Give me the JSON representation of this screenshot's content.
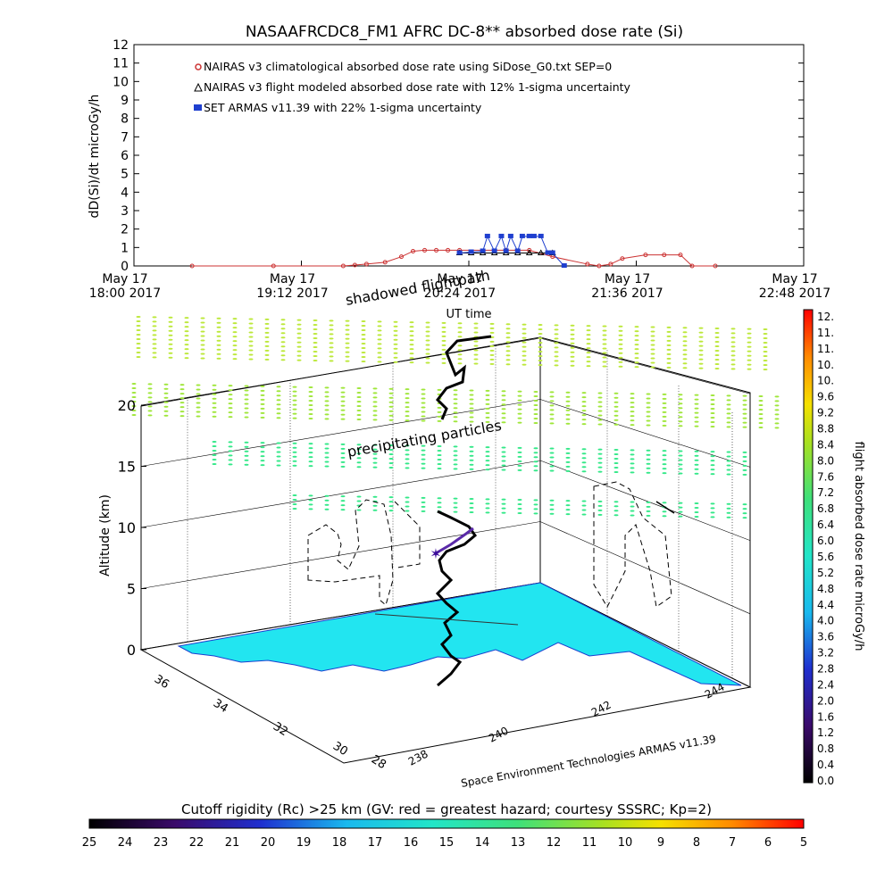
{
  "chart_data": [
    {
      "type": "line",
      "title": "NASAAFRCDC8_FM1 AFRC DC-8** absorbed dose rate (Si)",
      "ylabel": "dD(Si)/dt microGy/h",
      "xlabel": "UT time",
      "ylim": [
        0,
        12
      ],
      "yticks": [
        "0",
        "1",
        "2",
        "3",
        "4",
        "5",
        "6",
        "7",
        "8",
        "9",
        "10",
        "11",
        "12"
      ],
      "xticks": [
        {
          "line1": "May 17",
          "line2": "18:00 2017"
        },
        {
          "line1": "May 17",
          "line2": "19:12 2017"
        },
        {
          "line1": "May 17",
          "line2": "20:24 2017"
        },
        {
          "line1": "May 17",
          "line2": "21:36 2017"
        },
        {
          "line1": "May 17",
          "line2": "22:48 2017"
        }
      ],
      "xlim_minutes": [
        0,
        288
      ],
      "legend": "top-left",
      "series": [
        {
          "name": "NAIRAS v3 climatological absorbed dose rate using SiDose_G0.txt SEP=0",
          "color": "#cc3333",
          "marker": "circle",
          "x": [
            25,
            60,
            90,
            95,
            100,
            108,
            115,
            120,
            125,
            130,
            135,
            140,
            160,
            170,
            180,
            195,
            200,
            205,
            210,
            220,
            228,
            235,
            240,
            250
          ],
          "y": [
            0,
            0,
            0,
            0.05,
            0.1,
            0.2,
            0.5,
            0.8,
            0.85,
            0.85,
            0.85,
            0.85,
            0.85,
            0.85,
            0.5,
            0.1,
            0,
            0.1,
            0.4,
            0.6,
            0.6,
            0.6,
            0,
            0
          ]
        },
        {
          "name": "NAIRAS v3 flight modeled absorbed dose rate with 12% 1-sigma uncertainty",
          "color": "#000000",
          "marker": "triangle",
          "x": [
            140,
            145,
            150,
            155,
            160,
            165,
            170,
            175,
            180
          ],
          "y": [
            0.7,
            0.7,
            0.7,
            0.7,
            0.7,
            0.7,
            0.7,
            0.7,
            0.7
          ]
        },
        {
          "name": "SET ARMAS v11.39 with 22% 1-sigma uncertainty",
          "color": "#1f3fcf",
          "marker": "square",
          "x": [
            140,
            145,
            150,
            152,
            155,
            158,
            160,
            162,
            165,
            167,
            170,
            172,
            175,
            178,
            180,
            185
          ],
          "y": [
            0.7,
            0.75,
            0.8,
            1.6,
            0.8,
            1.6,
            0.8,
            1.6,
            0.8,
            1.6,
            1.6,
            1.6,
            1.6,
            0.7,
            0.7,
            0
          ]
        }
      ]
    },
    {
      "type": "scatter",
      "subtype": "3d-flight-track",
      "zlabel": "Altitude (km)",
      "zticks": [
        "0",
        "5",
        "10",
        "15",
        "20"
      ],
      "lat_ticks": [
        "36",
        "34",
        "32",
        "30",
        "28"
      ],
      "lon_ticks": [
        "238",
        "240",
        "242",
        "244"
      ],
      "annotations": [
        "shadowed flightpath",
        "precipitating particles"
      ],
      "caption": "Space Environment Technologies ARMAS v11.39",
      "ocean_color": "#22e5f0",
      "land_color": "#ffffff",
      "particle_color": "#33e888",
      "track_color": "#000000"
    },
    {
      "type": "colorbar",
      "orientation": "vertical",
      "label": "flight absorbed dose rate microGy/h",
      "ticks": [
        "12.",
        "11.",
        "11.",
        "10.",
        "10.",
        "9.6",
        "9.2",
        "8.8",
        "8.4",
        "8.0",
        "7.6",
        "7.2",
        "6.8",
        "6.4",
        "6.0",
        "5.6",
        "5.2",
        "4.8",
        "4.4",
        "4.0",
        "3.6",
        "3.2",
        "2.8",
        "2.4",
        "2.0",
        "1.6",
        "1.2",
        "0.8",
        "0.4",
        "0.0"
      ]
    },
    {
      "type": "colorbar",
      "orientation": "horizontal",
      "label": "Cutoff rigidity (Rc) >25 km (GV: red = greatest hazard; courtesy SSSRC; Kp=2)",
      "ticks": [
        "25",
        "24",
        "23",
        "22",
        "21",
        "20",
        "19",
        "18",
        "17",
        "16",
        "15",
        "14",
        "13",
        "12",
        "11",
        "10",
        "9",
        "8",
        "7",
        "6",
        "5"
      ]
    }
  ]
}
